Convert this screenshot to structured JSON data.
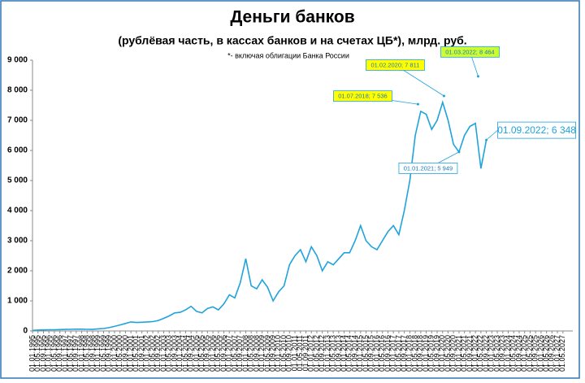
{
  "chart_data": {
    "type": "line",
    "title": "Деньги банков",
    "subtitle": "(рублёвая часть, в кассах банков и на счетах ЦБ*), млрд. руб.",
    "note": "*- включая облигации Банка России",
    "categories": [
      "01.01.1995",
      "01.05.1995",
      "01.09.1995",
      "01.01.1996",
      "01.05.1996",
      "01.09.1996",
      "01.01.1997",
      "01.05.1997",
      "01.09.1997",
      "01.01.1998",
      "01.05.1998",
      "01.09.1998",
      "01.01.1999",
      "01.05.1999",
      "01.09.1999",
      "01.01.2000",
      "01.05.2000",
      "01.09.2000",
      "01.01.2001",
      "01.05.2001",
      "01.09.2001",
      "01.01.2002",
      "01.05.2002",
      "01.09.2002",
      "01.01.2003",
      "01.05.2003",
      "01.09.2003",
      "01.01.2004",
      "01.05.2004",
      "01.09.2004",
      "01.01.2005",
      "01.05.2005",
      "01.09.2005",
      "01.01.2006",
      "01.05.2006",
      "01.09.2006",
      "01.01.2007",
      "01.05.2007",
      "01.09.2007",
      "01.01.2008",
      "01.05.2008",
      "01.09.2008",
      "01.01.2009",
      "01.05.2009",
      "01.09.2009",
      "01.01.2010",
      "01.05.2010",
      "01.09.2010",
      "01.01.2011",
      "01.05.2011",
      "01.09.2011",
      "01.01.2012",
      "01.05.2012",
      "01.09.2012",
      "01.01.2013",
      "01.05.2013",
      "01.09.2013",
      "01.01.2014",
      "01.05.2014",
      "01.09.2014",
      "01.01.2015",
      "01.05.2015",
      "01.09.2015",
      "01.01.2016",
      "01.05.2016",
      "01.09.2016",
      "01.01.2017",
      "01.05.2017",
      "01.09.2017",
      "01.01.2018",
      "01.05.2018",
      "01.09.2018",
      "01.01.2019",
      "01.05.2019",
      "01.09.2019",
      "01.01.2020",
      "01.05.2020",
      "01.09.2020",
      "01.01.2021",
      "01.05.2021",
      "01.09.2021",
      "01.01.2022",
      "01.05.2022",
      "01.09.2022",
      "01.01.2023",
      "01.05.2023",
      "01.09.2023",
      "01.01.2024",
      "01.05.2024",
      "01.09.2024",
      "01.01.2025",
      "01.05.2025",
      "01.09.2025",
      "01.01.2026",
      "01.05.2026",
      "01.09.2026",
      "01.01.2027",
      "01.05.2027"
    ],
    "series": [
      {
        "color": "#1fa3dd",
        "values": [
          20,
          30,
          35,
          40,
          40,
          45,
          50,
          55,
          60,
          60,
          55,
          50,
          70,
          80,
          110,
          150,
          200,
          250,
          300,
          280,
          290,
          300,
          310,
          350,
          420,
          500,
          600,
          620,
          700,
          820,
          650,
          600,
          750,
          800,
          700,
          900,
          1200,
          1100,
          1600,
          2400,
          1500,
          1400,
          1700,
          1450,
          1000,
          1300,
          1500,
          2200,
          2500,
          2700,
          2300,
          2800,
          2500,
          2000,
          2300,
          2200,
          2400,
          2600,
          2600,
          3000,
          3500,
          3000,
          2800,
          2700,
          3000,
          3300,
          3500,
          3200,
          4000,
          5000,
          6500,
          7300,
          7200,
          6700,
          7000,
          7600,
          7000,
          6200,
          5949,
          6500,
          6800,
          6900,
          5400,
          6348,
          null,
          null,
          null,
          null,
          null,
          null,
          null,
          null,
          null,
          null,
          null,
          null,
          null,
          null
        ]
      }
    ],
    "annotations": [
      {
        "label": "01.07.2018; 7 536",
        "value": 7536,
        "color": "#ffff00"
      },
      {
        "label": "01.02.2020; 7 811",
        "value": 7811,
        "color": "#ffff00"
      },
      {
        "label": "01.01.2021; 5 949",
        "value": 5949,
        "color": "#ffffff"
      },
      {
        "label": "01.03.2022; 8 464",
        "value": 8464,
        "color": "#ccff33"
      },
      {
        "label": "01.09.2022; 6 348",
        "value": 6348,
        "color": "#ffffff"
      }
    ],
    "ylim": [
      0,
      9000
    ],
    "yticks": [
      0,
      {
        "value": 1000,
        "label": "1 000"
      },
      {
        "value": 2000,
        "label": "2 000"
      },
      {
        "value": 3000,
        "label": "3 000"
      },
      {
        "value": 4000,
        "label": "4 000"
      },
      {
        "value": 5000,
        "label": "5 000"
      },
      {
        "value": 6000,
        "label": "6 000"
      },
      {
        "value": 7000,
        "label": "7 000"
      },
      {
        "value": 8000,
        "label": "8 000"
      },
      {
        "value": 9000,
        "label": "9 000"
      }
    ],
    "grid": false
  }
}
